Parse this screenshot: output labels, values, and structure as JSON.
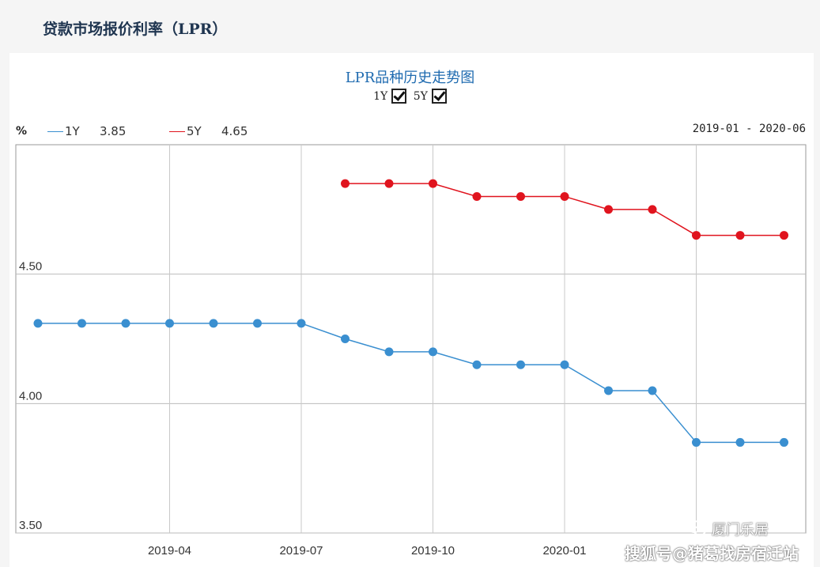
{
  "page": {
    "heading": "贷款市场报价利率（LPR）"
  },
  "chart": {
    "title": "LPR品种历史走势图",
    "toggles": [
      {
        "label": "1Y",
        "checked": true
      },
      {
        "label": "5Y",
        "checked": true
      }
    ],
    "unit": "%",
    "legend": [
      {
        "name": "1Y",
        "value": "3.85",
        "color": "#3a8fd0"
      },
      {
        "name": "5Y",
        "value": "4.65",
        "color": "#e0141e"
      }
    ],
    "date_range": "2019-01 - 2020-06"
  },
  "chart_data": {
    "type": "line",
    "title": "LPR品种历史走势图",
    "xlabel": "",
    "ylabel": "%",
    "ylim": [
      3.5,
      5.0
    ],
    "yticks": [
      "3.50",
      "4.00",
      "4.50"
    ],
    "xticks": [
      "2019-04",
      "2019-07",
      "2019-10",
      "2020-01"
    ],
    "grid": true,
    "x": [
      "2019-01",
      "2019-02",
      "2019-03",
      "2019-04",
      "2019-05",
      "2019-06",
      "2019-07",
      "2019-08",
      "2019-09",
      "2019-10",
      "2019-11",
      "2019-12",
      "2020-01",
      "2020-02",
      "2020-03",
      "2020-04",
      "2020-05",
      "2020-06"
    ],
    "series": [
      {
        "name": "1Y",
        "color": "#3a8fd0",
        "values": [
          4.31,
          4.31,
          4.31,
          4.31,
          4.31,
          4.31,
          4.31,
          4.25,
          4.2,
          4.2,
          4.15,
          4.15,
          4.15,
          4.05,
          4.05,
          3.85,
          3.85,
          3.85
        ]
      },
      {
        "name": "5Y",
        "color": "#e0141e",
        "values": [
          null,
          null,
          null,
          null,
          null,
          null,
          null,
          4.85,
          4.85,
          4.85,
          4.8,
          4.8,
          4.8,
          4.75,
          4.75,
          4.65,
          4.65,
          4.65
        ]
      }
    ]
  },
  "watermark": {
    "line1": "厦门乐居",
    "line2": "搜狐号@猪葛找房宿迁站"
  }
}
